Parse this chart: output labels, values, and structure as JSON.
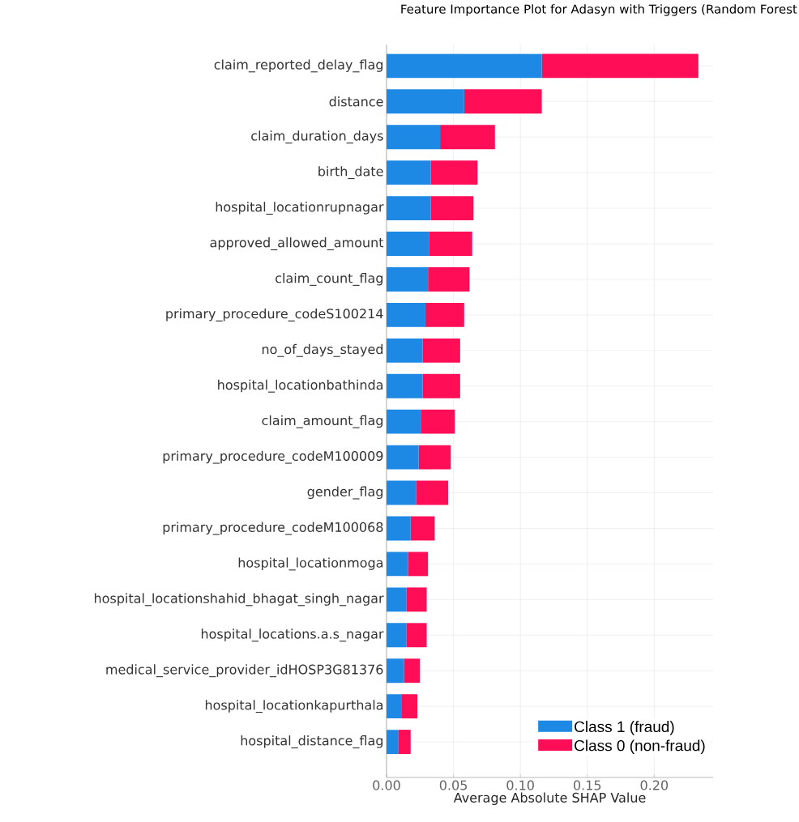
{
  "chart_data": {
    "type": "bar",
    "orientation": "horizontal",
    "stacked": true,
    "title": "Feature Importance Plot for Adasyn with Triggers (Random Forest",
    "xlabel": "Average Absolute SHAP Value",
    "categories": [
      "claim_reported_delay_flag",
      "distance",
      "claim_duration_days",
      "birth_date",
      "hospital_locationrupnagar",
      "approved_allowed_amount",
      "claim_count_flag",
      "primary_procedure_codeS100214",
      "no_of_days_stayed",
      "hospital_locationbathinda",
      "claim_amount_flag",
      "primary_procedure_codeM100009",
      "gender_flag",
      "primary_procedure_codeM100068",
      "hospital_locationmoga",
      "hospital_locationshahid_bhagat_singh_nagar",
      "hospital_locations.a.s_nagar",
      "medical_service_provider_idHOSP3G81376",
      "hospital_locationkapurthala",
      "hospital_distance_flag"
    ],
    "series": [
      {
        "name": "Class 1 (fraud)",
        "color": "#1e88e5",
        "values": [
          0.116,
          0.058,
          0.04,
          0.033,
          0.033,
          0.032,
          0.031,
          0.029,
          0.027,
          0.027,
          0.026,
          0.024,
          0.022,
          0.018,
          0.016,
          0.015,
          0.015,
          0.013,
          0.011,
          0.009
        ]
      },
      {
        "name": "Class 0 (non-fraud)",
        "color": "#ff0d57",
        "values": [
          0.117,
          0.058,
          0.041,
          0.035,
          0.032,
          0.032,
          0.031,
          0.029,
          0.028,
          0.028,
          0.025,
          0.024,
          0.024,
          0.018,
          0.015,
          0.015,
          0.015,
          0.012,
          0.012,
          0.009
        ]
      }
    ],
    "xlim": [
      0,
      0.244
    ],
    "xticks": [
      {
        "value": 0,
        "label": "0.00"
      },
      {
        "value": 0.05,
        "label": "0.05"
      },
      {
        "value": 0.1,
        "label": "0.10"
      },
      {
        "value": 0.15,
        "label": "0.15"
      },
      {
        "value": 0.2,
        "label": "0.20"
      }
    ],
    "grid": true,
    "legend": "bottom right"
  }
}
